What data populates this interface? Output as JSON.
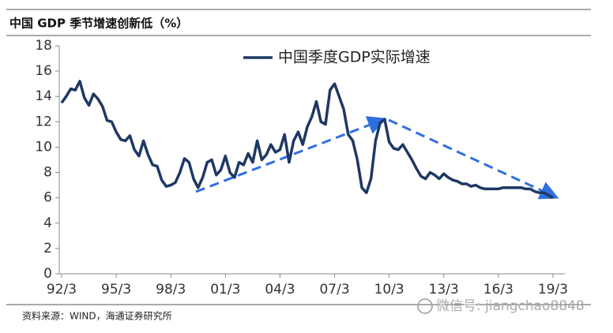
{
  "chart_data": {
    "type": "line",
    "title": "中国 GDP 季节增速创新低（%）",
    "source": "资料来源：WIND，海通证券研究所",
    "watermark": "微信号: jiangchao8848",
    "categories": [
      "92/3",
      null,
      null,
      null,
      null,
      null,
      null,
      null,
      null,
      null,
      null,
      null,
      "95/3",
      null,
      null,
      null,
      null,
      null,
      null,
      null,
      null,
      null,
      null,
      null,
      "98/3",
      null,
      null,
      null,
      null,
      null,
      null,
      null,
      null,
      null,
      null,
      null,
      "01/3",
      null,
      null,
      null,
      null,
      null,
      null,
      null,
      null,
      null,
      null,
      null,
      "04/3",
      null,
      null,
      null,
      null,
      null,
      null,
      null,
      null,
      null,
      null,
      null,
      "07/3",
      null,
      null,
      null,
      null,
      null,
      null,
      null,
      null,
      null,
      null,
      null,
      "10/3",
      null,
      null,
      null,
      null,
      null,
      null,
      null,
      null,
      null,
      null,
      null,
      "13/3",
      null,
      null,
      null,
      null,
      null,
      null,
      null,
      null,
      null,
      null,
      null,
      "16/3",
      null,
      null,
      null,
      null,
      null,
      null,
      null,
      null,
      null,
      null,
      null,
      "19/3"
    ],
    "series": [
      {
        "name": "中国季度GDP实际增速",
        "color": "#1f3864",
        "values": [
          13.5,
          14.0,
          14.6,
          14.5,
          15.2,
          13.9,
          13.3,
          14.2,
          13.8,
          13.2,
          12.1,
          12.0,
          11.2,
          10.6,
          10.5,
          10.9,
          9.8,
          9.3,
          10.5,
          9.4,
          8.6,
          8.5,
          7.4,
          6.9,
          7.0,
          7.2,
          8.0,
          9.1,
          8.8,
          7.5,
          6.8,
          7.6,
          8.8,
          9.0,
          7.8,
          8.2,
          9.3,
          8.0,
          7.6,
          8.8,
          8.6,
          9.5,
          8.8,
          10.5,
          9.0,
          9.4,
          10.2,
          9.6,
          9.8,
          11.0,
          8.8,
          10.5,
          11.2,
          10.2,
          11.6,
          12.4,
          13.6,
          12.0,
          11.8,
          14.5,
          15.0,
          14.0,
          13.0,
          11.0,
          10.5,
          9.0,
          6.8,
          6.4,
          7.5,
          10.5,
          11.9,
          12.2,
          10.4,
          9.9,
          9.8,
          10.2,
          9.6,
          9.0,
          8.3,
          7.7,
          7.5,
          8.0,
          7.8,
          7.5,
          7.9,
          7.6,
          7.4,
          7.3,
          7.1,
          7.1,
          6.9,
          7.0,
          6.8,
          6.7,
          6.7,
          6.7,
          6.7,
          6.8,
          6.8,
          6.8,
          6.8,
          6.8,
          6.7,
          6.7,
          6.5,
          6.4,
          6.4,
          6.2,
          6.0
        ]
      }
    ],
    "ylim": [
      0,
      18
    ],
    "yticks": [
      0,
      2,
      4,
      6,
      8,
      10,
      12,
      14,
      16,
      18
    ],
    "grid": false,
    "legend": "top"
  }
}
